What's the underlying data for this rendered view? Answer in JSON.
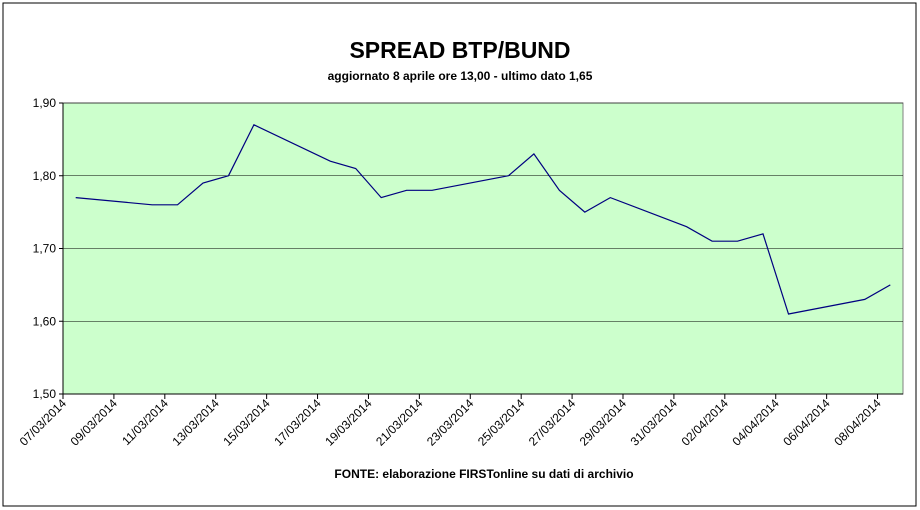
{
  "chart_data": {
    "type": "line",
    "title": "SPREAD BTP/BUND",
    "subtitle": "aggiornato 8 aprile ore 13,00 - ultimo dato 1,65",
    "source": "FONTE: elaborazione FIRSTonline su dati di archivio",
    "x": [
      "07/03/2014",
      "10/03/2014",
      "11/03/2014",
      "12/03/2014",
      "13/03/2014",
      "14/03/2014",
      "17/03/2014",
      "18/03/2014",
      "19/03/2014",
      "20/03/2014",
      "21/03/2014",
      "24/03/2014",
      "25/03/2014",
      "26/03/2014",
      "27/03/2014",
      "28/03/2014",
      "31/03/2014",
      "01/04/2014",
      "02/04/2014",
      "03/04/2014",
      "04/04/2014",
      "07/04/2014",
      "08/04/2014"
    ],
    "series": [
      {
        "name": "spread",
        "color": "#000080",
        "values": [
          1.77,
          1.76,
          1.76,
          1.79,
          1.8,
          1.87,
          1.82,
          1.81,
          1.77,
          1.78,
          1.78,
          1.8,
          1.83,
          1.78,
          1.75,
          1.77,
          1.73,
          1.71,
          1.71,
          1.72,
          1.61,
          1.63,
          1.65
        ]
      }
    ],
    "xlim": [
      "07/03/2014",
      "08/04/2014"
    ],
    "xticks": [
      "07/03/2014",
      "09/03/2014",
      "11/03/2014",
      "13/03/2014",
      "15/03/2014",
      "17/03/2014",
      "19/03/2014",
      "21/03/2014",
      "23/03/2014",
      "25/03/2014",
      "27/03/2014",
      "29/03/2014",
      "31/03/2014",
      "02/04/2014",
      "04/04/2014",
      "06/04/2014",
      "08/04/2014"
    ],
    "ylim": [
      1.5,
      1.9
    ],
    "yticks": [
      {
        "value": 1.5,
        "label": "1,50"
      },
      {
        "value": 1.6,
        "label": "1,60"
      },
      {
        "value": 1.7,
        "label": "1,70"
      },
      {
        "value": 1.8,
        "label": "1,80"
      },
      {
        "value": 1.9,
        "label": "1,90"
      }
    ],
    "grid": true,
    "plot_background": "#ccffcc"
  }
}
